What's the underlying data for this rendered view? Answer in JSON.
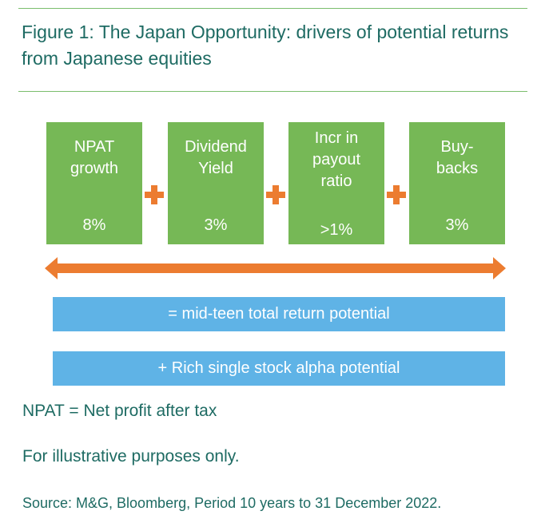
{
  "title": "Figure 1: The Japan Opportunity: drivers of potential returns from Japanese equities",
  "boxes": [
    {
      "label": "NPAT\ngrowth",
      "value": "8%"
    },
    {
      "label": "Dividend\nYield",
      "value": "3%"
    },
    {
      "label": "Incr in\npayout\nratio",
      "value": ">1%"
    },
    {
      "label": "Buy-\nbacks",
      "value": "3%"
    }
  ],
  "bars": {
    "total": "= mid-teen total return potential",
    "alpha": "+ Rich single stock alpha potential"
  },
  "notes": {
    "npat": "NPAT = Net profit after tax",
    "illustrative": "For illustrative purposes only."
  },
  "source": "Source: M&G, Bloomberg, Period 10 years to 31 December 2022.",
  "colors": {
    "title_text": "#1e6b63",
    "rule": "#7bbd6d",
    "box": "#76b856",
    "plus": "#ec7c30",
    "arrow": "#ec7c30",
    "bar": "#5fb3e6"
  }
}
